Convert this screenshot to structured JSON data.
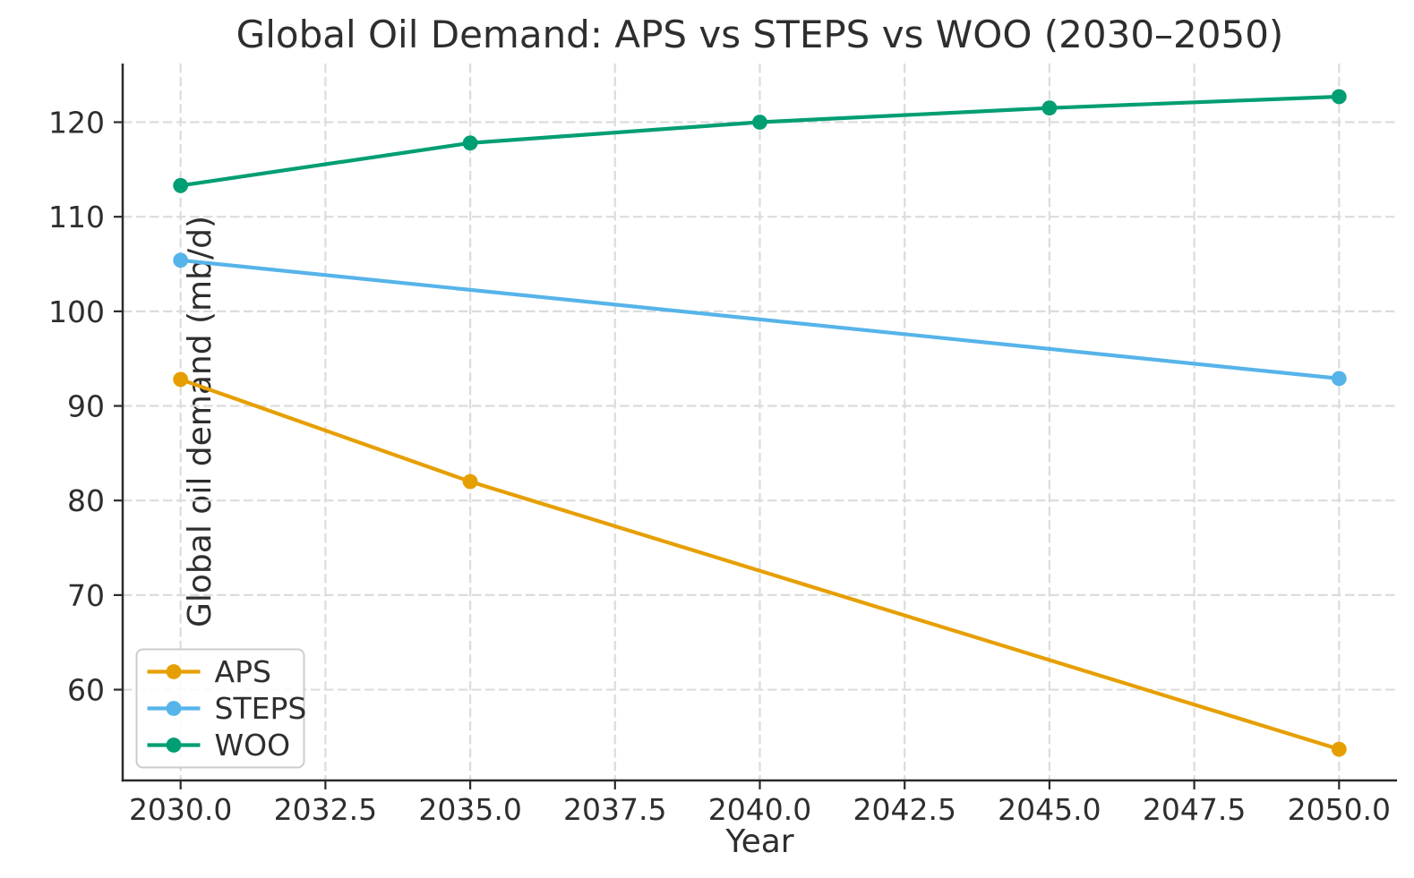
{
  "chart_data": {
    "type": "line",
    "title": "Global Oil Demand: APS vs STEPS vs WOO (2030–2050)",
    "xlabel": "Year",
    "ylabel": "Global oil demand (mb/d)",
    "xlim": [
      2029,
      2051
    ],
    "ylim": [
      50.4,
      126.2
    ],
    "x_ticks": [
      2030,
      2032.5,
      2035,
      2037.5,
      2040,
      2042.5,
      2045,
      2047.5,
      2050
    ],
    "x_tick_labels": [
      "2030.0",
      "2032.5",
      "2035.0",
      "2037.5",
      "2040.0",
      "2042.5",
      "2045.0",
      "2047.5",
      "2050.0"
    ],
    "y_ticks": [
      60,
      70,
      80,
      90,
      100,
      110,
      120
    ],
    "y_tick_labels": [
      "60",
      "70",
      "80",
      "90",
      "100",
      "110",
      "120"
    ],
    "grid": true,
    "legend_position": "lower left",
    "series": [
      {
        "name": "APS",
        "color": "#E69F00",
        "x": [
          2030,
          2035,
          2050
        ],
        "y": [
          92.8,
          82.0,
          53.7
        ]
      },
      {
        "name": "STEPS",
        "color": "#56B4E9",
        "x": [
          2030,
          2050
        ],
        "y": [
          105.4,
          92.9
        ]
      },
      {
        "name": "WOO",
        "color": "#009E73",
        "x": [
          2030,
          2035,
          2040,
          2045,
          2050
        ],
        "y": [
          113.3,
          117.8,
          120.0,
          121.5,
          122.7
        ]
      }
    ]
  },
  "style_colors": {
    "text": "#2e2e2e",
    "grid": "#dcdcdc",
    "spine": "#2a2a2a",
    "legend_border": "#cccccc",
    "legend_fill": "rgba(255,255,255,0.85)",
    "background": "#ffffff"
  }
}
